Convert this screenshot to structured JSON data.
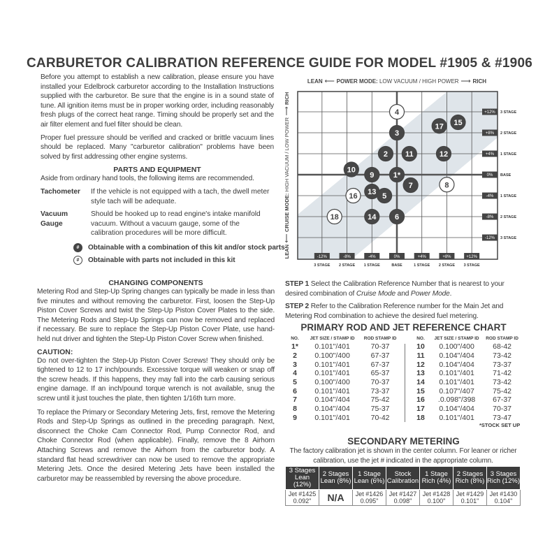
{
  "title": "CARBURETOR CALIBRATION REFERENCE GUIDE FOR MODEL #1905 & #1906",
  "intro": {
    "p1": "Before you attempt to establish a new calibration, please ensure you have installed your Edelbrock carburetor according to the Installation Instructions supplied with the carburetor. Be sure that the engine is in a sound state of tune. All ignition items must be in proper working order, including reasonably fresh plugs of the correct heat range. Timing should be properly set and the air filter element and fuel filter should be clean.",
    "p2": "Proper fuel pressure should be verified and cracked or brittle vacuum lines should be replaced. Many \"carburetor calibration\" problems have been solved by first addressing other engine systems."
  },
  "parts": {
    "heading": "PARTS AND EQUIPMENT",
    "lead": "Aside from ordinary hand tools, the following items are recommended.",
    "items": [
      {
        "term": "Tachometer",
        "desc": "If the vehicle is not equipped with a tach, the dwell meter style tach will be adequate."
      },
      {
        "term": "Vacuum Gauge",
        "desc": "Should be hooked up to read engine's intake manifold vacuum. Without a vacuum gauge, some of the calibration procedures will be more difficult."
      }
    ]
  },
  "legend": {
    "symbol": "#",
    "filled": "Obtainable with a combination of this kit and/or stock parts",
    "open": "Obtainable with parts not included in this kit"
  },
  "changing": {
    "heading": "CHANGING COMPONENTS",
    "p1": "Metering Rod and Step-Up Spring changes can typically be made in less than five minutes and without removing the carburetor. First, loosen the Step-Up Piston Cover Screws and twist the Step-Up Piston Cover Plates to the side. The Metering Rods and Step-Up Springs can now be removed and replaced if necessary. Be sure to replace the Step-Up Piston Cover Plate, use hand-held nut driver and tighten the Step-Up Piston Cover Screw when finished.",
    "caution_label": "CAUTION:",
    "caution": "Do not over-tighten the Step-Up Piston Cover Screws! They should only be tightened to 12 to 17 inch/pounds. Excessive torque will weaken or snap off the screw heads. If this happens, they may fall into the carb causing serious engine damage. If an inch/pound torque wrench is not available, snug the screw until it just touches the plate, then tighten 1/16th turn more.",
    "p2": "To replace the Primary or Secondary Metering Jets, first, remove the Metering Rods and Step-Up Springs as outlined in the preceding paragraph. Next, disconnect the Choke Cam Connector Rod, Pump Connector Rod, and Choke Connector Rod (when applicable). Finally, remove the 8 Airhorn Attaching Screws and remove the Airhorn from the carburetor body. A standard flat head screwdriver can now be used to remove the appropriate Metering Jets. Once the desired Metering Jets have been installed the carburetor may be reassembled by reversing the above procedure."
  },
  "diagram": {
    "top_lean": "LEAN",
    "top_label_bold": "POWER MODE:",
    "top_label": "LOW VACUUM / HIGH POWER",
    "top_rich": "RICH",
    "side_lean": "LEAN",
    "side_label_bold": "CRUISE MODE:",
    "side_label": "HIGH VACUUM / LOW POWER",
    "side_rich": "RICH",
    "x_ticks": [
      {
        "v": "-12%",
        "s": "3 STAGE"
      },
      {
        "v": "-8%",
        "s": "2 STAGE"
      },
      {
        "v": "-4%",
        "s": "1 STAGE"
      },
      {
        "v": "0%",
        "s": "BASE"
      },
      {
        "v": "+4%",
        "s": "1 STAGE"
      },
      {
        "v": "+8%",
        "s": "2 STAGE"
      },
      {
        "v": "+12%",
        "s": "3 STAGE"
      }
    ],
    "y_ticks": [
      {
        "v": "+12%",
        "s": "3 STAGE"
      },
      {
        "v": "+8%",
        "s": "2 STAGE"
      },
      {
        "v": "+4%",
        "s": "1 STAGE"
      },
      {
        "v": "0%",
        "s": "BASE"
      },
      {
        "v": "-4%",
        "s": "1 STAGE"
      },
      {
        "v": "-8%",
        "s": "2 STAGE"
      },
      {
        "v": "-12%",
        "s": "3 STAGE"
      }
    ],
    "points": [
      {
        "n": "4",
        "power": 0,
        "cruise": 12,
        "filled": false
      },
      {
        "n": "3",
        "power": 0,
        "cruise": 8,
        "filled": true
      },
      {
        "n": "17",
        "power": 6.8,
        "cruise": 9.3,
        "filled": true
      },
      {
        "n": "15",
        "power": 9.8,
        "cruise": 10,
        "filled": true
      },
      {
        "n": "2",
        "power": -1.8,
        "cruise": 4,
        "filled": true
      },
      {
        "n": "11",
        "power": 2,
        "cruise": 4,
        "filled": true
      },
      {
        "n": "12",
        "power": 7.5,
        "cruise": 4,
        "filled": true
      },
      {
        "n": "10",
        "power": -7.3,
        "cruise": 1,
        "filled": true
      },
      {
        "n": "9",
        "power": -4,
        "cruise": 0,
        "filled": true
      },
      {
        "n": "1*",
        "power": 0,
        "cruise": 0,
        "filled": true
      },
      {
        "n": "7",
        "power": 2.2,
        "cruise": -2,
        "filled": true
      },
      {
        "n": "8",
        "power": 8,
        "cruise": -1.9,
        "filled": false
      },
      {
        "n": "16",
        "power": -7,
        "cruise": -4,
        "filled": false
      },
      {
        "n": "13",
        "power": -4,
        "cruise": -3.2,
        "filled": true
      },
      {
        "n": "5",
        "power": -2,
        "cruise": -4,
        "filled": true
      },
      {
        "n": "18",
        "power": -10,
        "cruise": -8,
        "filled": false
      },
      {
        "n": "14",
        "power": -4,
        "cruise": -8,
        "filled": true
      },
      {
        "n": "6",
        "power": 0,
        "cruise": -8,
        "filled": true
      }
    ],
    "colors": {
      "band": "#dfe5ea",
      "filled": "#474747",
      "grid": "#555"
    }
  },
  "steps": {
    "s1_label": "STEP 1",
    "s1_a": "Select the Calibration Reference Number that is nearest to your desired combination of ",
    "s1_i1": "Cruise Mode",
    "s1_b": " and ",
    "s1_i2": "Power Mode",
    "s1_c": ".",
    "s2_label": "STEP 2",
    "s2": "Refer to the Calibration Reference number for the Main Jet and Metering Rod combination to achieve the desired fuel metering."
  },
  "primary": {
    "title": "PRIMARY ROD AND JET REFERENCE CHART",
    "headers": [
      "NO.",
      "JET SIZE / STAMP ID",
      "ROD STAMP ID"
    ],
    "rows": [
      [
        "1*",
        "0.101\"/401",
        "70-37"
      ],
      [
        "2",
        "0.100\"/400",
        "67-37"
      ],
      [
        "3",
        "0.101\"/401",
        "67-37"
      ],
      [
        "4",
        "0.101\"/401",
        "65-37"
      ],
      [
        "5",
        "0.100\"/400",
        "70-37"
      ],
      [
        "6",
        "0.101\"/401",
        "73-37"
      ],
      [
        "7",
        "0.104\"/404",
        "75-42"
      ],
      [
        "8",
        "0.104\"/404",
        "75-37"
      ],
      [
        "9",
        "0.101\"/401",
        "70-42"
      ],
      [
        "10",
        "0.100\"/400",
        "68-42"
      ],
      [
        "11",
        "0.104\"/404",
        "73-42"
      ],
      [
        "12",
        "0.104\"/404",
        "73-37"
      ],
      [
        "13",
        "0.101\"/401",
        "71-42"
      ],
      [
        "14",
        "0.101\"/401",
        "73-42"
      ],
      [
        "15",
        "0.107\"/407",
        "75-42"
      ],
      [
        "16",
        ".0.098\"/398",
        "67-37"
      ],
      [
        "17",
        "0.104\"/404",
        "70-37"
      ],
      [
        "18",
        "0.101\"/401",
        "73-47"
      ]
    ],
    "footnote": "*STOCK SET UP"
  },
  "secondary": {
    "title": "SECONDARY METERING",
    "desc": "The factory calibration jet is shown in the center column. For leaner or richer calibration, use the jet # indicated in the appropriate column.",
    "headers": [
      [
        "3 Stages",
        "Lean (12%)"
      ],
      [
        "2 Stages",
        "Lean (8%)"
      ],
      [
        "1 Stage",
        "Lean (6%)"
      ],
      [
        "Stock",
        "Calibration"
      ],
      [
        "1 Stage",
        "Rich (4%)"
      ],
      [
        "2 Stages",
        "Rich (8%)"
      ],
      [
        "3 Stages",
        "Rich (12%)"
      ]
    ],
    "cells": [
      [
        "Jet #1425",
        "0.092\""
      ],
      [
        "N/A",
        ""
      ],
      [
        "Jet #1426",
        "0.095\""
      ],
      [
        "Jet #1427",
        "0.098\""
      ],
      [
        "Jet #1428",
        "0.100\""
      ],
      [
        "Jet #1429",
        "0.101\""
      ],
      [
        "Jet #1430",
        "0.104\""
      ]
    ]
  }
}
